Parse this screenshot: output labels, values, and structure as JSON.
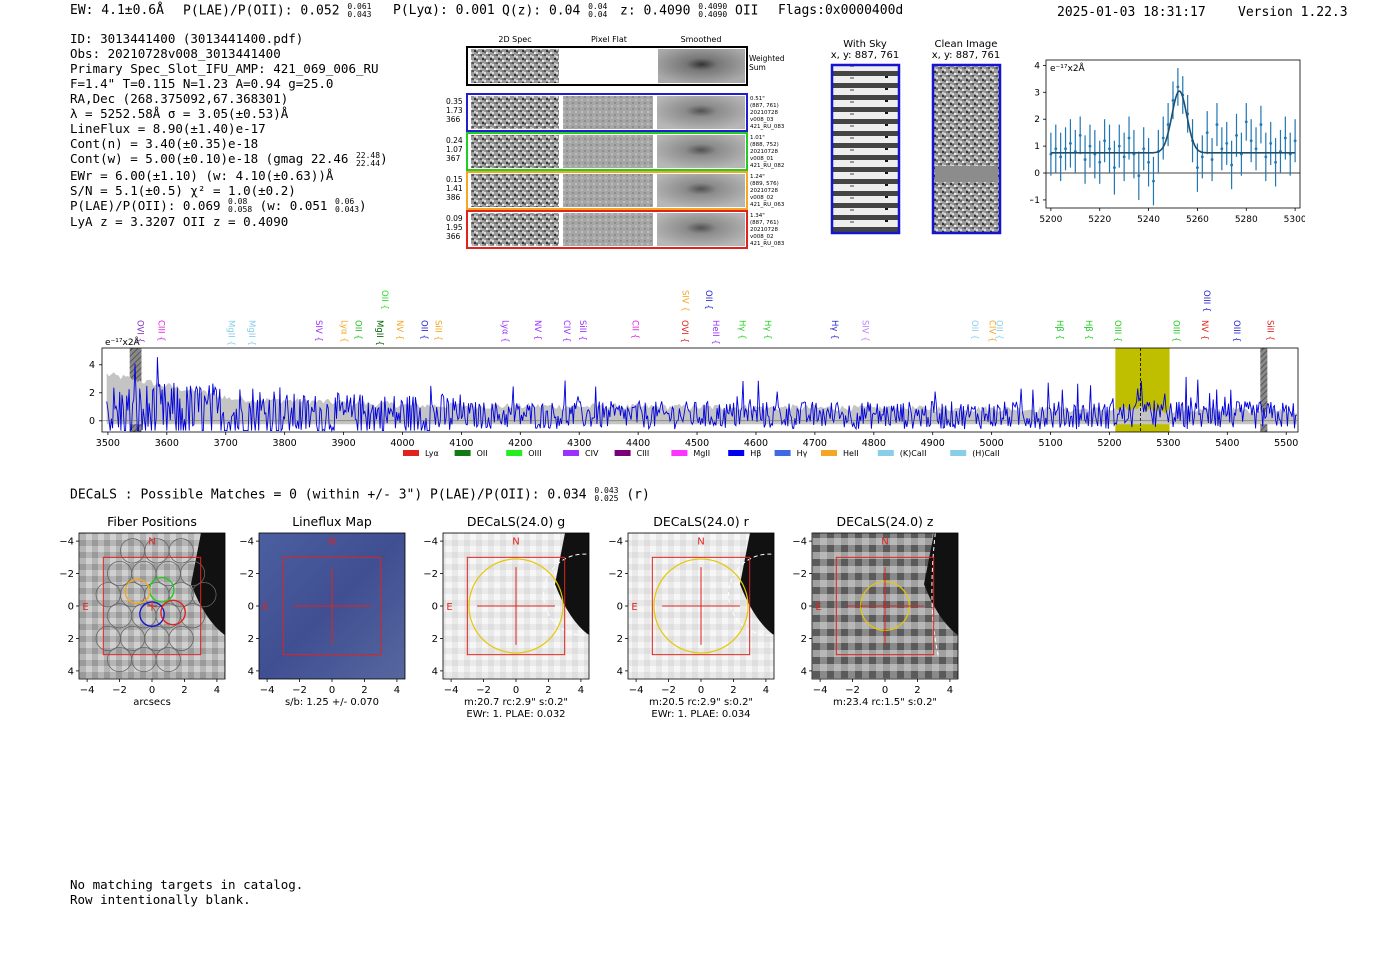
{
  "header": {
    "ew": "EW: 4.1±0.6Å",
    "plae_label": "P(LAE)/P(OII): 0.052",
    "plae_hi": "0.061",
    "plae_lo": "0.043",
    "plya": "P(Lyα): 0.001",
    "qz_label": "Q(z): 0.04",
    "qz_hi": "0.04",
    "qz_lo": "0.04",
    "z_label": "z: 0.4090",
    "z_hi": "0.4090",
    "z_lo": "0.4090",
    "z_line": "OII",
    "flags": "Flags:0x0000400d",
    "datetime": "2025-01-03 18:31:17",
    "version": "Version 1.22.3"
  },
  "info": {
    "id": "ID: 3013441400 (3013441400.pdf)",
    "obs": "Obs: 20210728v008_3013441400",
    "primary": "Primary Spec_Slot_IFU_AMP: 421_069_006_RU",
    "params": "F=1.4\"  T=0.115  N=1.23  A=0.94  g=25.0",
    "radec": "RA,Dec (268.375092,67.368301)",
    "lambda": "λ = 5252.58Å   σ = 3.05(±0.53)Å",
    "lineflux": "LineFlux = 8.90(±1.40)e-17",
    "contn": "Cont(n) = 3.40(±0.35)e-18",
    "contw": "Cont(w) = 5.00(±0.10)e-18 (gmag 22.46",
    "gmag_hi": "22.48",
    "gmag_lo": "22.44",
    "ewr": "EWr = 6.00(±1.10) (w: 4.10(±0.63))Å",
    "sn": "S/N = 5.1(±0.5)  χ² = 1.0(±0.2)",
    "plae2": "P(LAE)/P(OII): 0.069",
    "plae2_hi": "0.08",
    "plae2_lo": "0.058",
    "plae2_w": "(w: 0.051",
    "plae2_w_hi": "0.06",
    "plae2_w_lo": "0.043",
    "lyaz": "LyA z = 3.3207   OII z = 0.4090"
  },
  "cutouts": {
    "col_labels": [
      "2D Spec",
      "Pixel Flat",
      "Smoothed"
    ],
    "weighted_sum": [
      "Weighted",
      "Sum"
    ],
    "rows": [
      {
        "color": "#1f1fd0",
        "left": [
          "0.35",
          "1.73",
          "366"
        ],
        "right": [
          "0.51\"",
          "(887, 761)",
          "20210728",
          "v008_03",
          "421_RU_083"
        ]
      },
      {
        "color": "#22cc22",
        "left": [
          "0.24",
          "1.07",
          "367"
        ],
        "right": [
          "1.01\"",
          "(888, 752)",
          "20210728",
          "v008_01",
          "421_RU_082"
        ]
      },
      {
        "color": "#f5a623",
        "left": [
          "0.15",
          "1.41",
          "386"
        ],
        "right": [
          "1.24\"",
          "(889, 576)",
          "20210728",
          "v008_02",
          "421_RU_063"
        ]
      },
      {
        "color": "#e0231f",
        "left": [
          "0.09",
          "1.95",
          "366"
        ],
        "right": [
          "1.34\"",
          "(887, 761)",
          "20210728",
          "v008_02",
          "421_RU_083"
        ]
      }
    ],
    "with_sky": [
      "With Sky",
      "x, y: 887, 761"
    ],
    "clean": [
      "Clean Image",
      "x, y: 887, 761"
    ]
  },
  "fit_chart": {
    "type": "line",
    "ylabel": "e⁻¹⁷x2Å",
    "xlim": [
      5198,
      5302
    ],
    "ylim": [
      -1.3,
      4.2
    ],
    "xticks": [
      5200,
      5220,
      5240,
      5260,
      5280,
      5300
    ],
    "yticks": [
      -1,
      0,
      1,
      2,
      3,
      4
    ],
    "data_color": "#1f77b4",
    "fit_color": "#1f4f6f",
    "continuum": 0.75,
    "peak": 2.3,
    "center": 5252.6,
    "sigma": 3.05,
    "points": [
      [
        5200,
        0.7,
        0.8
      ],
      [
        5202,
        0.9,
        0.9
      ],
      [
        5204,
        0.6,
        0.9
      ],
      [
        5206,
        0.9,
        0.8
      ],
      [
        5208,
        1.1,
        0.9
      ],
      [
        5210,
        0.8,
        0.8
      ],
      [
        5212,
        1.4,
        0.7
      ],
      [
        5214,
        0.5,
        0.9
      ],
      [
        5216,
        1.0,
        0.8
      ],
      [
        5218,
        0.7,
        0.9
      ],
      [
        5220,
        0.4,
        0.8
      ],
      [
        5222,
        1.2,
        0.8
      ],
      [
        5224,
        0.9,
        0.9
      ],
      [
        5226,
        0.2,
        1.0
      ],
      [
        5228,
        1.0,
        0.8
      ],
      [
        5230,
        0.6,
        0.9
      ],
      [
        5232,
        1.3,
        0.8
      ],
      [
        5234,
        0.7,
        0.9
      ],
      [
        5236,
        -0.1,
        0.9
      ],
      [
        5238,
        0.9,
        0.8
      ],
      [
        5240,
        0.4,
        0.9
      ],
      [
        5242,
        -0.3,
        0.9
      ],
      [
        5244,
        0.8,
        0.8
      ],
      [
        5246,
        1.3,
        0.8
      ],
      [
        5248,
        1.8,
        0.8
      ],
      [
        5250,
        2.7,
        0.7
      ],
      [
        5252,
        3.2,
        0.7
      ],
      [
        5254,
        2.9,
        0.7
      ],
      [
        5256,
        2.2,
        0.7
      ],
      [
        5258,
        1.2,
        0.8
      ],
      [
        5260,
        0.2,
        0.9
      ],
      [
        5262,
        0.6,
        0.8
      ],
      [
        5264,
        1.5,
        0.8
      ],
      [
        5266,
        0.5,
        0.8
      ],
      [
        5268,
        1.8,
        0.8
      ],
      [
        5270,
        0.9,
        0.8
      ],
      [
        5272,
        1.1,
        0.8
      ],
      [
        5274,
        0.3,
        0.9
      ],
      [
        5276,
        1.4,
        0.8
      ],
      [
        5278,
        0.7,
        0.8
      ],
      [
        5280,
        1.9,
        0.7
      ],
      [
        5282,
        1.2,
        0.8
      ],
      [
        5284,
        0.9,
        0.8
      ],
      [
        5286,
        1.8,
        0.7
      ],
      [
        5288,
        0.6,
        0.9
      ],
      [
        5290,
        1.1,
        0.8
      ],
      [
        5292,
        0.4,
        0.9
      ],
      [
        5294,
        0.8,
        0.8
      ],
      [
        5296,
        1.3,
        0.8
      ],
      [
        5298,
        0.7,
        0.8
      ],
      [
        5300,
        1.2,
        0.8
      ]
    ]
  },
  "chart_data": {
    "type": "line",
    "title": "",
    "ylabel": "e⁻¹⁷x2Å",
    "xlim": [
      3490,
      5520
    ],
    "ylim": [
      -0.8,
      5.2
    ],
    "xticks": [
      3500,
      3600,
      3700,
      3800,
      3900,
      4000,
      4100,
      4200,
      4300,
      4400,
      4500,
      4600,
      4700,
      4800,
      4900,
      5000,
      5100,
      5200,
      5300,
      5400,
      5500
    ],
    "yticks": [
      0,
      2,
      4
    ],
    "series_color": "#0000dd",
    "noise_color": "#bdbdbd",
    "highlight": {
      "range": [
        5210,
        5302
      ],
      "center": 5252.6,
      "color": "#bfbf00"
    },
    "hatched": [
      [
        3537,
        3557
      ],
      [
        5456,
        5468
      ]
    ],
    "lines": [
      {
        "name": "OVI",
        "wave": 3545,
        "color": "#7b2fbe",
        "level": 0
      },
      {
        "name": "CIII",
        "wave": 3581,
        "color": "#e020e0",
        "level": 0
      },
      {
        "name": "MgII",
        "wave": 3700,
        "color": "#87ceeb",
        "level": 0
      },
      {
        "name": "MgII",
        "wave": 3734,
        "color": "#87ceeb",
        "level": 0
      },
      {
        "name": "SIV",
        "wave": 3848,
        "color": "#9b30ff",
        "level": 0
      },
      {
        "name": "Lyα",
        "wave": 3891,
        "color": "#f5a623",
        "level": 0
      },
      {
        "name": "OII",
        "wave": 3915,
        "color": "#22bb22",
        "level": 0
      },
      {
        "name": "MgII",
        "wave": 3952,
        "color": "#006400",
        "level": 0
      },
      {
        "name": "OII",
        "wave": 3960,
        "color": "#22dd22",
        "level": 1
      },
      {
        "name": "NV",
        "wave": 3986,
        "color": "#f5a623",
        "level": 0
      },
      {
        "name": "OII",
        "wave": 4027,
        "color": "#1f1fd0",
        "level": 0
      },
      {
        "name": "SiII",
        "wave": 4051,
        "color": "#f5a623",
        "level": 0
      },
      {
        "name": "Lyα",
        "wave": 4165,
        "color": "#9b30ff",
        "level": 0
      },
      {
        "name": "NV",
        "wave": 4220,
        "color": "#9b30ff",
        "level": 0
      },
      {
        "name": "CIV",
        "wave": 4269,
        "color": "#9b30ff",
        "level": 0
      },
      {
        "name": "SiII",
        "wave": 4296,
        "color": "#9b30ff",
        "level": 0
      },
      {
        "name": "CII",
        "wave": 4385,
        "color": "#e020e0",
        "level": 0
      },
      {
        "name": "OVI",
        "wave": 4469,
        "color": "#e0231f",
        "level": 0
      },
      {
        "name": "SIV",
        "wave": 4470,
        "color": "#f5a623",
        "level": 1
      },
      {
        "name": "OII",
        "wave": 4510,
        "color": "#1f1fd0",
        "level": 1
      },
      {
        "name": "HeII",
        "wave": 4522,
        "color": "#9b30ff",
        "level": 0
      },
      {
        "name": "Hγ",
        "wave": 4567,
        "color": "#22cc22",
        "level": 0
      },
      {
        "name": "Hγ",
        "wave": 4610,
        "color": "#22cc22",
        "level": 0
      },
      {
        "name": "Hγ",
        "wave": 4724,
        "color": "#1f1fd0",
        "level": 0
      },
      {
        "name": "SIV",
        "wave": 4776,
        "color": "#c080ff",
        "level": 0
      },
      {
        "name": "OII",
        "wave": 4962,
        "color": "#87ceeb",
        "level": 0
      },
      {
        "name": "CIV",
        "wave": 4991,
        "color": "#f5a623",
        "level": 0
      },
      {
        "name": "OII",
        "wave": 5003,
        "color": "#87ceeb",
        "level": 0
      },
      {
        "name": "Hβ",
        "wave": 5106,
        "color": "#22cc22",
        "level": 0
      },
      {
        "name": "Hβ",
        "wave": 5155,
        "color": "#22cc22",
        "level": 0
      },
      {
        "name": "OIII",
        "wave": 5204,
        "color": "#22cc22",
        "level": 0
      },
      {
        "name": "OIII",
        "wave": 5304,
        "color": "#22cc22",
        "level": 0
      },
      {
        "name": "NV",
        "wave": 5352,
        "color": "#e0231f",
        "level": 0
      },
      {
        "name": "OIII",
        "wave": 5355,
        "color": "#1f1fd0",
        "level": 1
      },
      {
        "name": "OIII",
        "wave": 5406,
        "color": "#1f1fd0",
        "level": 0
      },
      {
        "name": "SiII",
        "wave": 5463,
        "color": "#e0231f",
        "level": 0
      }
    ],
    "legend": [
      {
        "name": "Lyα",
        "color": "#e0231f"
      },
      {
        "name": "OII",
        "color": "#117a11"
      },
      {
        "name": "OIII",
        "color": "#22ee22"
      },
      {
        "name": "CIV",
        "color": "#9b30ff"
      },
      {
        "name": "CIII",
        "color": "#7a007a"
      },
      {
        "name": "MgII",
        "color": "#ff33ff"
      },
      {
        "name": "Hβ",
        "color": "#0000ee"
      },
      {
        "name": "Hγ",
        "color": "#4169e1"
      },
      {
        "name": "HeII",
        "color": "#f5a623"
      },
      {
        "name": "(K)CaII",
        "color": "#87ceeb"
      },
      {
        "name": "(H)CaII",
        "color": "#87ceeb"
      }
    ]
  },
  "decals": {
    "title_left": "DECaLS : Possible Matches = 0 (within +/- 3\")  P(LAE)/P(OII): 0.034",
    "title_hi": "0.043",
    "title_lo": "0.025",
    "title_band": "(r)",
    "axis_ticks": [
      "−4",
      "−2",
      "0",
      "2",
      "4"
    ],
    "panels": [
      {
        "title": "Fiber Positions",
        "caption1": "arcsecs",
        "caption2": ""
      },
      {
        "title": "Lineflux Map",
        "caption1": "s/b: 1.25 +/- 0.070",
        "caption2": ""
      },
      {
        "title": "DECaLS(24.0) g",
        "caption1": "m:20.7 rc:2.9\"  s:0.2\"",
        "caption2": "EWr: 1. PLAE: 0.032"
      },
      {
        "title": "DECaLS(24.0) r",
        "caption1": "m:20.5 rc:2.9\"  s:0.2\"",
        "caption2": "EWr: 1. PLAE: 0.034"
      },
      {
        "title": "DECaLS(24.0) z",
        "caption1": "m:23.4 rc:1.5\"  s:0.2\"",
        "caption2": ""
      }
    ],
    "compass_n": "N",
    "compass_e": "E"
  },
  "footer": {
    "line1": "No matching targets in catalog.",
    "line2": "Row intentionally blank."
  }
}
